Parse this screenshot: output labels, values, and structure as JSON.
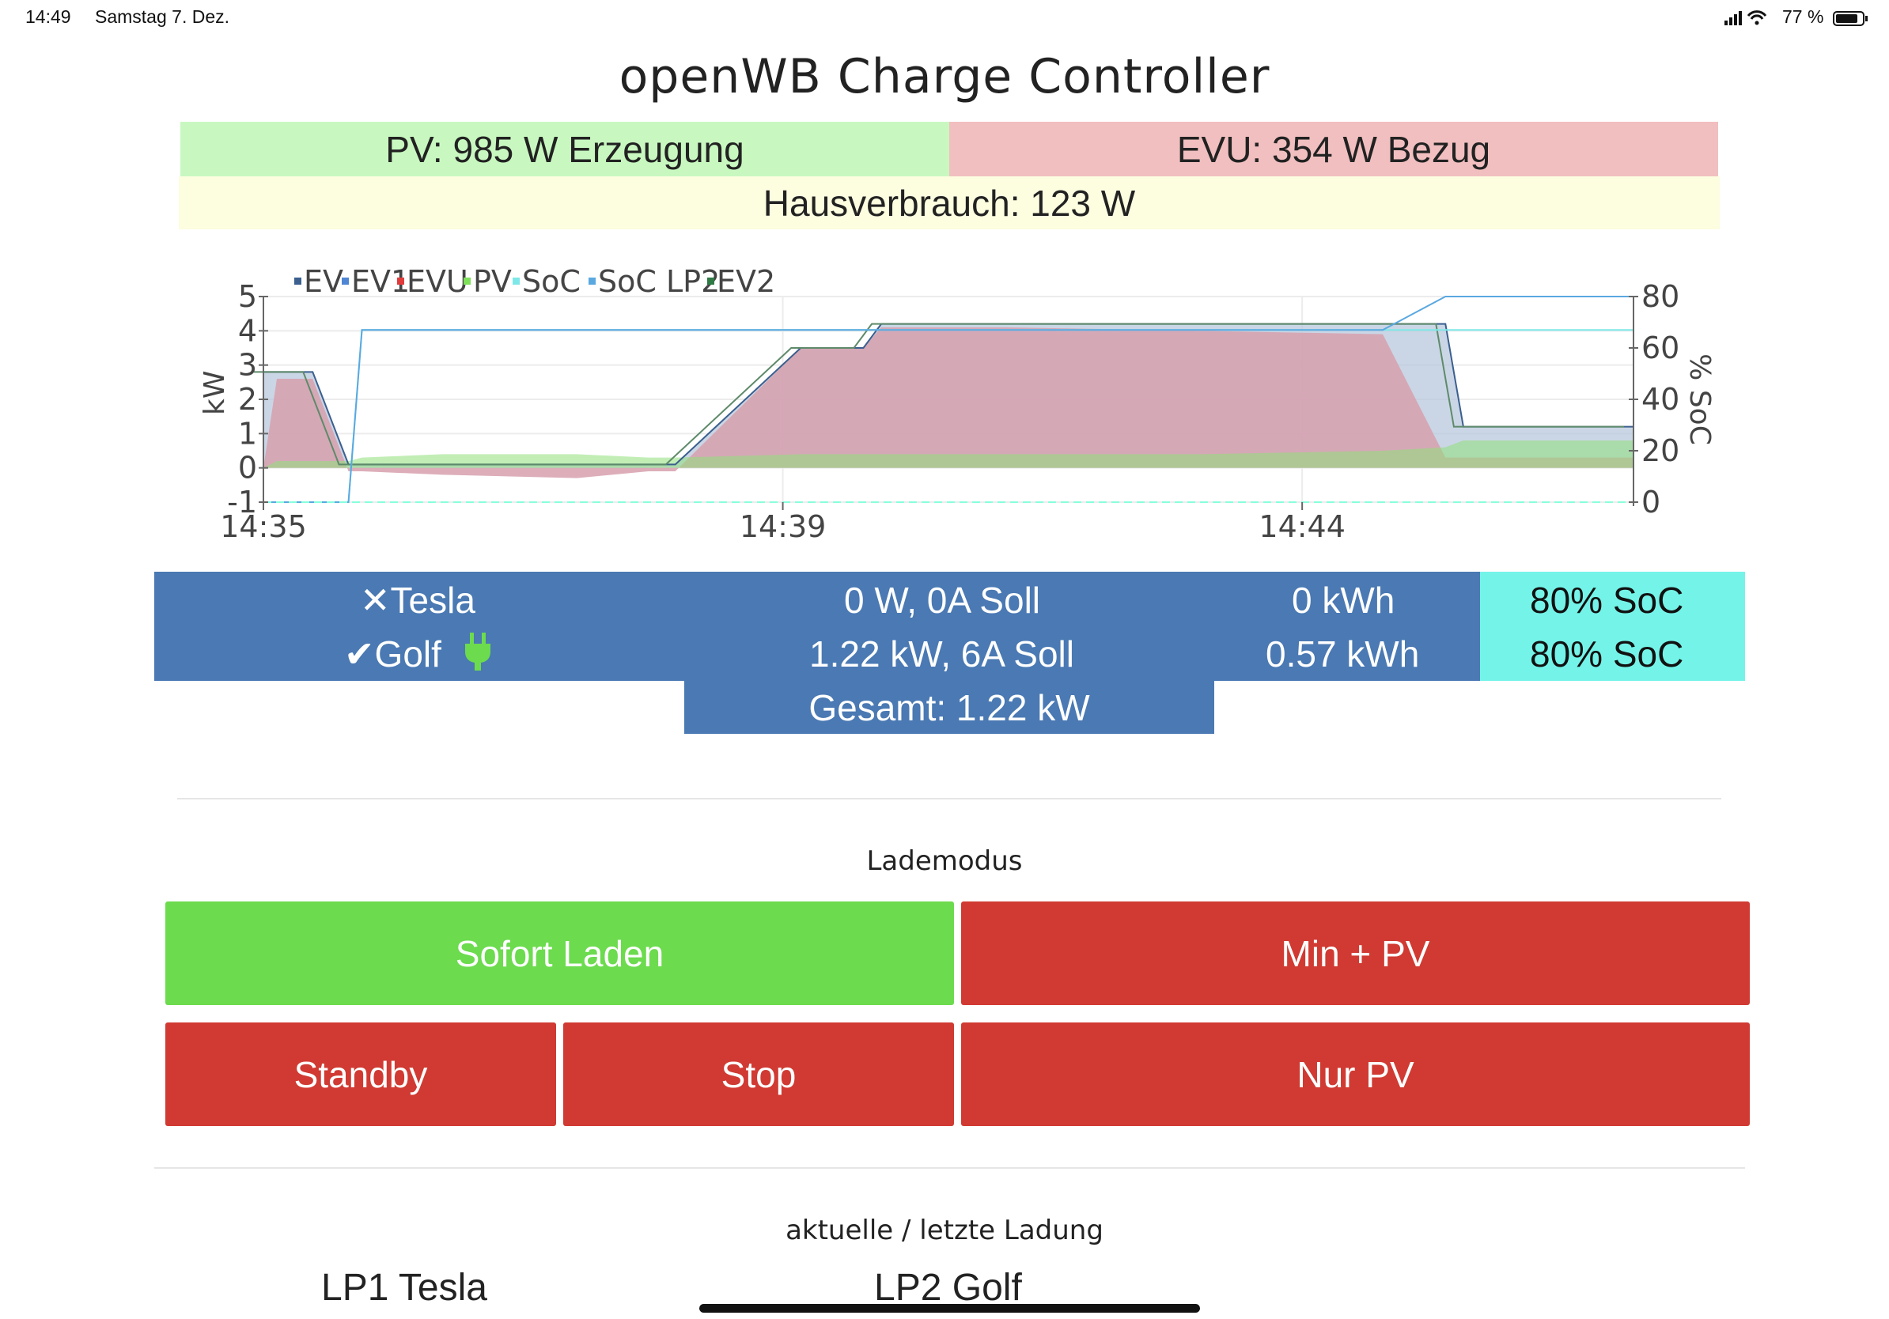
{
  "status_bar": {
    "time": "14:49",
    "date": "Samstag 7. Dez.",
    "battery": "77 %"
  },
  "title": "openWB Charge Controller",
  "summary": {
    "pv": "PV: 985 W Erzeugung",
    "evu": "EVU: 354 W Bezug",
    "house": "Hausverbrauch: 123 W"
  },
  "colors": {
    "pv_bg": "#c8f8c0",
    "evu_bg": "#f1bfbf",
    "house_bg": "#fdfde0",
    "table_blue": "#4a79b3",
    "soc_cyan": "#74f4e8",
    "btn_green": "#6cdb4e",
    "btn_red": "#d03a32"
  },
  "chart_data": {
    "type": "area",
    "xlabel": "",
    "ylabel": "kW",
    "y2label": "% SoC",
    "ylim": [
      -1,
      5
    ],
    "y2lim": [
      0,
      80
    ],
    "y_ticks": [
      "5",
      "4",
      "3",
      "2",
      "1",
      "0",
      "-1"
    ],
    "y2_ticks": [
      "80",
      "60",
      "40",
      "20",
      "0"
    ],
    "x_ticks": [
      "14:35",
      "14:39",
      "14:44"
    ],
    "legend": [
      "EV",
      "EV1",
      "EVU",
      "PV",
      "SoC",
      "SoC LP2",
      "EV2"
    ],
    "legend_colors": [
      "#3b5f8f",
      "#4f86d4",
      "#e03c3c",
      "#7fe05a",
      "#7ee8e8",
      "#5aa8e0",
      "#2f7a45"
    ],
    "legend_position": "top-left",
    "grid": true,
    "x_minutes": [
      0,
      0.15,
      0.35,
      0.55,
      0.95,
      1.1,
      2.0,
      3.5,
      4.3,
      4.6,
      6.0,
      6.7,
      6.9,
      8.3,
      10.5,
      12.5,
      13.2,
      13.4,
      15.3
    ],
    "series": [
      {
        "name": "EV",
        "values": [
          2.8,
          2.8,
          2.8,
          2.8,
          0.1,
          0.1,
          0.1,
          0.1,
          0.1,
          0.1,
          3.5,
          3.5,
          4.2,
          4.2,
          4.2,
          4.2,
          4.2,
          1.2,
          1.2
        ]
      },
      {
        "name": "EVU",
        "values": [
          0,
          2.6,
          2.6,
          2.6,
          -0.1,
          -0.1,
          -0.2,
          -0.3,
          -0.1,
          -0.1,
          3.5,
          3.5,
          4.1,
          4.1,
          4.0,
          3.9,
          0.3,
          0.3,
          0.3
        ]
      },
      {
        "name": "PV",
        "values": [
          0,
          0.2,
          0.2,
          0.2,
          0.2,
          0.3,
          0.4,
          0.4,
          0.3,
          0.3,
          0.4,
          0.4,
          0.4,
          0.4,
          0.4,
          0.5,
          0.6,
          0.8,
          0.8
        ]
      },
      {
        "name": "EV2",
        "values": [
          2.8,
          2.8,
          2.8,
          2.8,
          0.1,
          0.1,
          0.1,
          0.1,
          0.1,
          0.1,
          3.5,
          3.5,
          4.2,
          4.2,
          4.2,
          4.2,
          4.2,
          1.2,
          1.2
        ]
      },
      {
        "name": "SoC",
        "values": [
          0,
          0,
          0,
          0,
          0,
          67,
          67,
          67,
          67,
          67,
          67,
          67,
          67,
          67,
          67,
          67,
          67,
          67,
          67
        ]
      },
      {
        "name": "SoC LP2",
        "values": [
          0,
          0,
          0,
          0,
          0,
          67,
          67,
          67,
          67,
          67,
          67,
          67,
          67,
          67,
          67,
          67,
          80,
          80,
          80
        ]
      }
    ]
  },
  "table": {
    "rows": [
      {
        "mark": "✕",
        "name": "Tesla",
        "plug": "",
        "power": "0 W, 0A Soll",
        "energy": "0 kWh",
        "soc": "80% SoC"
      },
      {
        "mark": "✔",
        "name": "Golf",
        "plug": "plug-icon",
        "power": "1.22 kW, 6A Soll",
        "energy": "0.57 kWh",
        "soc": "80% SoC"
      }
    ],
    "total": "Gesamt: 1.22 kW"
  },
  "lademodus": {
    "label": "Lademodus",
    "buttons": {
      "sofort": "Sofort Laden",
      "minpv": "Min + PV",
      "standby": "Standby",
      "stop": "Stop",
      "nurpv": "Nur PV"
    }
  },
  "ladung": {
    "label": "aktuelle / letzte Ladung",
    "lp1": "LP1 Tesla",
    "lp2": "LP2 Golf"
  }
}
